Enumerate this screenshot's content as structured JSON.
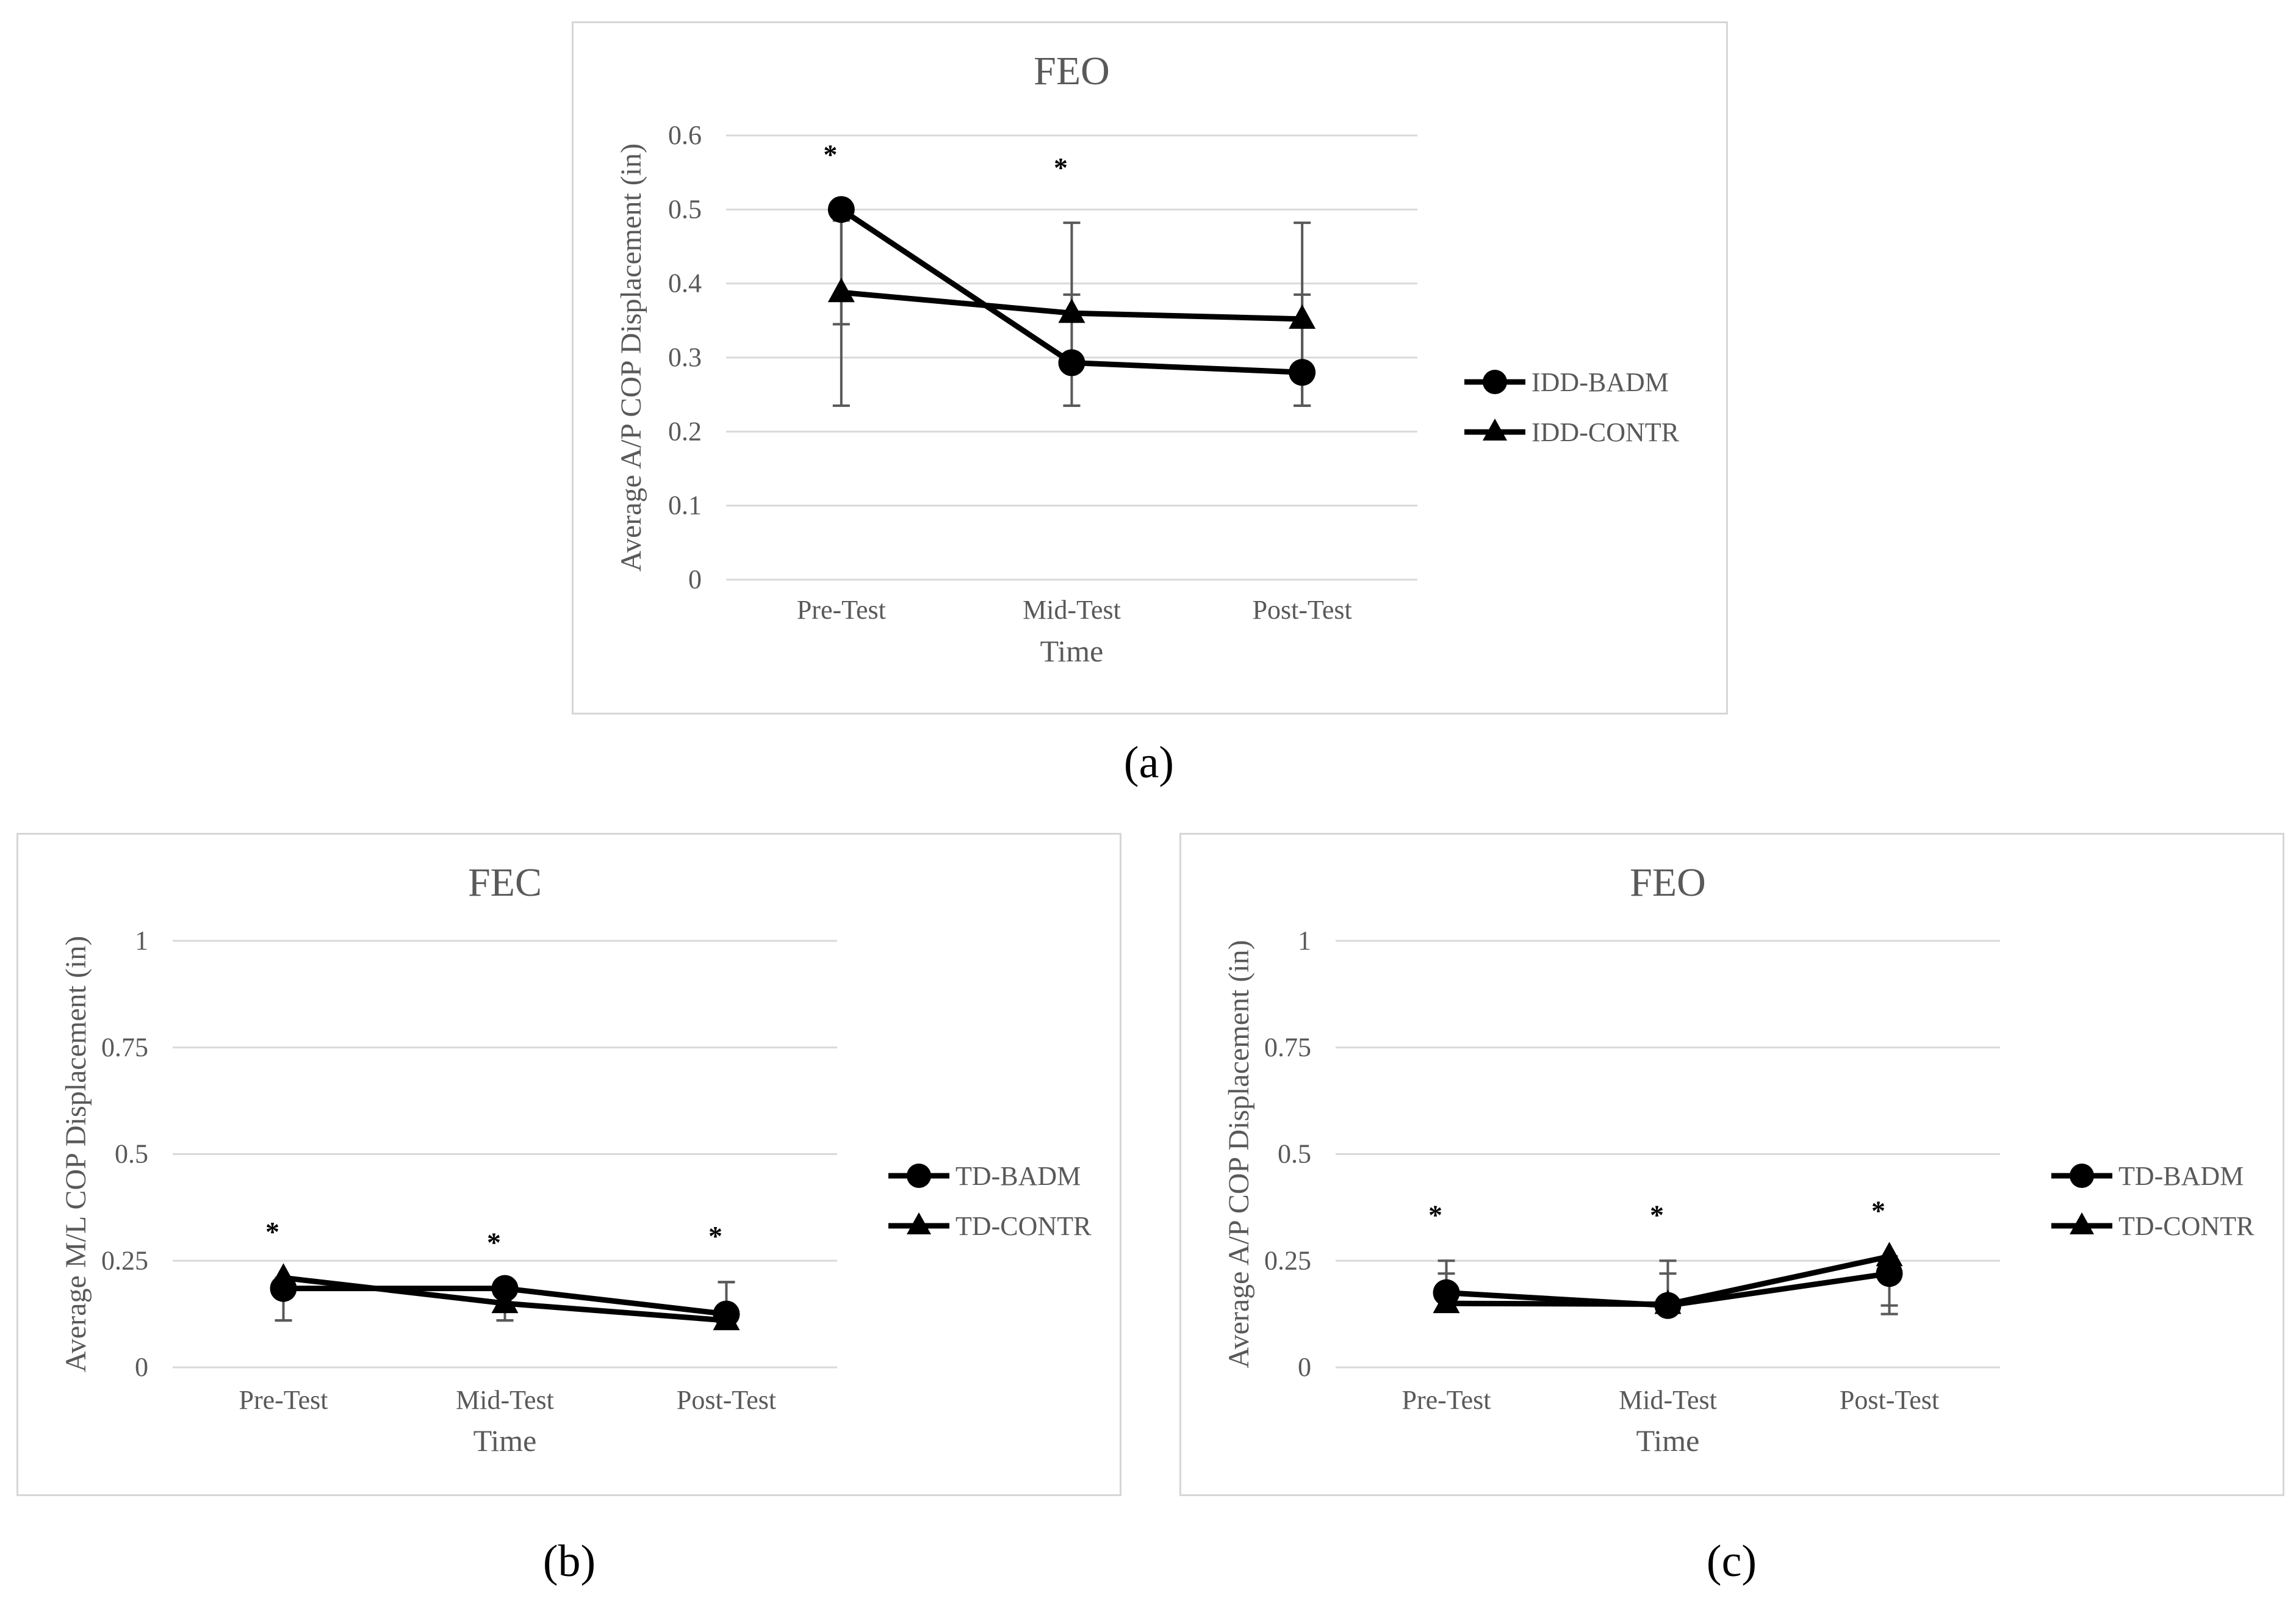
{
  "colors": {
    "line": "#000000",
    "grid": "#d9d9d9",
    "axis_text": "#595959",
    "errorbar": "#595959"
  },
  "panels": [
    {
      "caption": "(a)",
      "chart_data": {
        "type": "line",
        "title": "FEO",
        "xlabel": "Time",
        "ylabel": "Average A/P COP Displacement (in)",
        "categories": [
          "Pre-Test",
          "Mid-Test",
          "Post-Test"
        ],
        "yticks": [
          "0",
          "0.1",
          "0.2",
          "0.3",
          "0.4",
          "0.5",
          "0.6"
        ],
        "ylim": [
          0,
          0.6
        ],
        "grid": true,
        "legend_position": "right",
        "significance_markers": [
          "*",
          "*",
          ""
        ],
        "series": [
          {
            "name": "IDD-BADM",
            "marker": "circle",
            "values": [
              0.5,
              0.293,
              0.28
            ],
            "error": [
              [
                0.345,
                0.5
              ],
              [
                0.235,
                0.385
              ],
              [
                0.235,
                0.385
              ]
            ]
          },
          {
            "name": "IDD-CONTR",
            "marker": "triangle",
            "values": [
              0.388,
              0.36,
              0.352
            ],
            "error": [
              [
                0.235,
                0.485
              ],
              [
                0.235,
                0.482
              ],
              [
                0.235,
                0.482
              ]
            ]
          }
        ]
      }
    },
    {
      "caption": "(b)",
      "chart_data": {
        "type": "line",
        "title": "FEC",
        "xlabel": "Time",
        "ylabel": "Average M/L  COP Displacement (in)",
        "categories": [
          "Pre-Test",
          "Mid-Test",
          "Post-Test"
        ],
        "yticks": [
          "0",
          "0.25",
          "0.5",
          "0.75",
          "1"
        ],
        "ylim": [
          0,
          1
        ],
        "grid": true,
        "legend_position": "right",
        "significance_markers": [
          "*",
          "*",
          "*"
        ],
        "series": [
          {
            "name": "TD-BADM",
            "marker": "circle",
            "values": [
              0.185,
              0.185,
              0.125
            ],
            "error": [
              [
                0.11,
                0.2
              ],
              [
                0.11,
                0.185
              ],
              [
                0.11,
                0.2
              ]
            ]
          },
          {
            "name": "TD-CONTR",
            "marker": "triangle",
            "values": [
              0.21,
              0.15,
              0.11
            ],
            "error": [
              [
                0.11,
                0.21
              ],
              [
                0.11,
                0.15
              ],
              [
                0.11,
                0.2
              ]
            ]
          }
        ]
      }
    },
    {
      "caption": "(c)",
      "chart_data": {
        "type": "line",
        "title": "FEO",
        "xlabel": "Time",
        "ylabel": "Average A/P COP Displacement (in)",
        "categories": [
          "Pre-Test",
          "Mid-Test",
          "Post-Test"
        ],
        "yticks": [
          "0",
          "0.25",
          "0.5",
          "0.75",
          "1"
        ],
        "ylim": [
          0,
          1
        ],
        "grid": true,
        "legend_position": "right",
        "significance_markers": [
          "*",
          "*",
          "*"
        ],
        "series": [
          {
            "name": "TD-BADM",
            "marker": "circle",
            "values": [
              0.175,
              0.145,
              0.22
            ],
            "error": [
              [
                0.145,
                0.25
              ],
              [
                0.145,
                0.25
              ],
              [
                0.125,
                0.26
              ]
            ]
          },
          {
            "name": "TD-CONTR",
            "marker": "triangle",
            "values": [
              0.15,
              0.148,
              0.26
            ],
            "error": [
              [
                0.145,
                0.22
              ],
              [
                0.145,
                0.22
              ],
              [
                0.145,
                0.26
              ]
            ]
          }
        ]
      }
    }
  ]
}
